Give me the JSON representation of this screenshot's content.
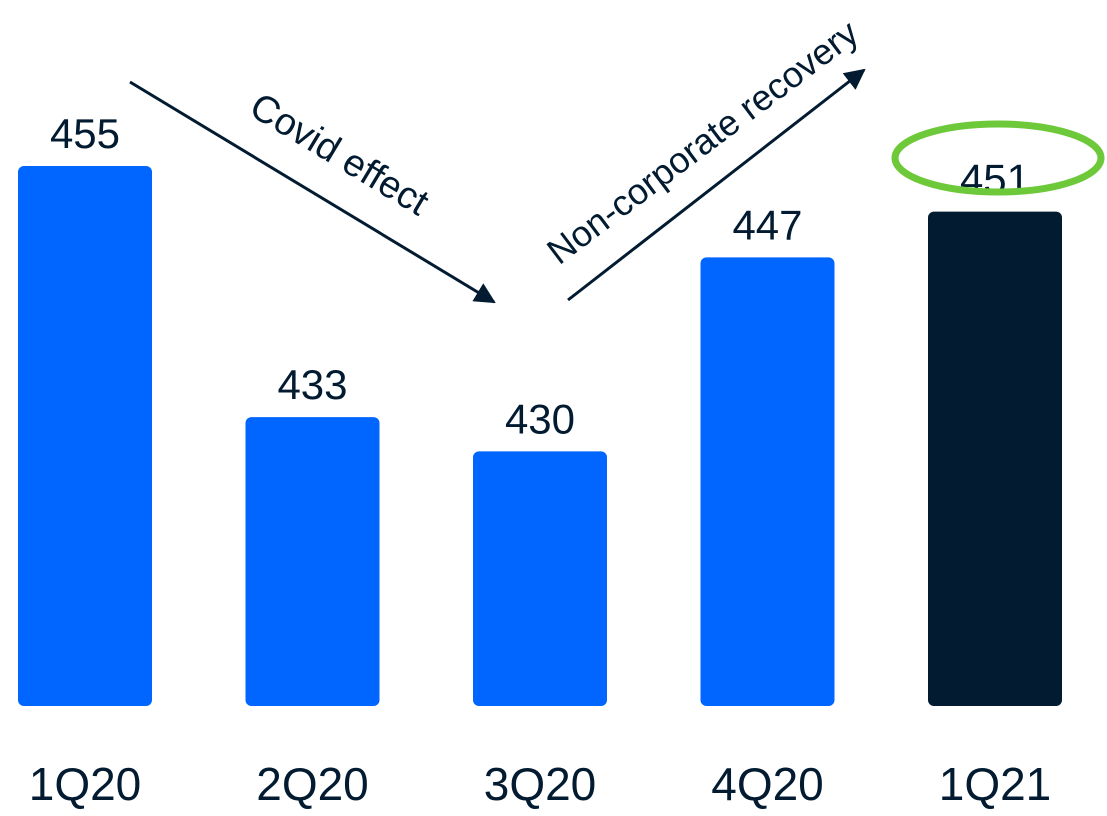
{
  "colors": {
    "bar": "#0066FF",
    "highlight_bar": "#021B31",
    "text": "#021B31",
    "arrow": "#021B31",
    "highlight_ring": "#6DC93A"
  },
  "chart_data": {
    "type": "bar",
    "categories": [
      "1Q20",
      "2Q20",
      "3Q20",
      "4Q20",
      "1Q21"
    ],
    "values": [
      455,
      433,
      430,
      447,
      451
    ],
    "data_labels": [
      "455",
      "433",
      "430",
      "447",
      "451"
    ],
    "highlighted_index": 4,
    "ylim": [
      0,
      455
    ],
    "grid": false,
    "legend": "none",
    "title": "",
    "xlabel": "",
    "ylabel": "",
    "annotations": [
      {
        "text": "Covid effect",
        "from": "1Q20",
        "to": "3Q20",
        "direction": "down"
      },
      {
        "text": "Non-corporate recovery",
        "from": "3Q20",
        "to": "4Q20",
        "direction": "up"
      }
    ]
  }
}
